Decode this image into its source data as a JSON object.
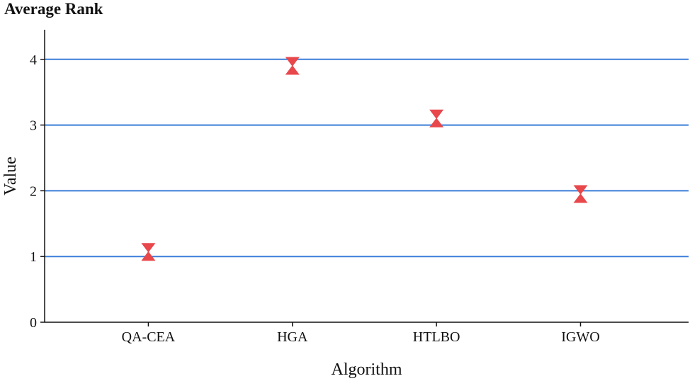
{
  "chart_data": {
    "type": "scatter",
    "title": "Average Rank",
    "xlabel": "Algorithm",
    "ylabel": "Value",
    "categories": [
      "QA-CEA",
      "HGA",
      "HTLBO",
      "IGWO"
    ],
    "values": [
      1.07,
      3.9,
      3.1,
      1.95
    ],
    "ylim": [
      0,
      4.45
    ],
    "yticks": [
      "0",
      "1",
      "2",
      "3",
      "4"
    ],
    "grid": "horizontal",
    "colors": {
      "marker": "#e8474b",
      "gridline": "#3b7dd8",
      "axis": "#111111"
    },
    "marker": "hourglass"
  }
}
